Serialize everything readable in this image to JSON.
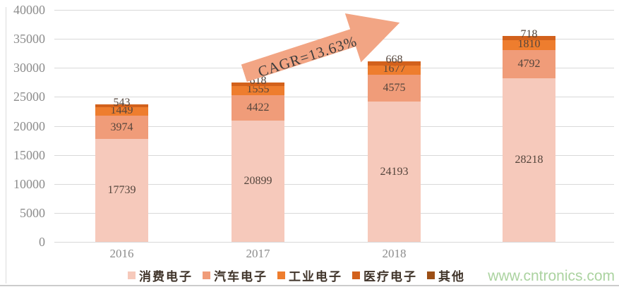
{
  "watermark": "www.cntronics.com",
  "annotation": {
    "text": "CAGR=13.63%"
  },
  "colors": {
    "grid": "#d9d9d9",
    "axis_text": "#8c8c8c",
    "bar_label_text": "#54453c",
    "legend_text": "#40342a",
    "arrow_fill": "#f2a584",
    "watermark_text": "#abd3a0"
  },
  "chart_data": {
    "type": "bar",
    "stacked": true,
    "title": "",
    "xlabel": "",
    "ylabel": "",
    "categories": [
      "2016",
      "2017",
      "2018",
      ""
    ],
    "series": [
      {
        "name": "消费电子",
        "key": "consumer-electronics",
        "color": "#f6c9bb",
        "values": [
          17739,
          20899,
          24193,
          28218
        ]
      },
      {
        "name": "汽车电子",
        "key": "automotive-electronics",
        "color": "#f09c79",
        "values": [
          3974,
          4422,
          4575,
          4792
        ]
      },
      {
        "name": "工业电子",
        "key": "industrial-electronics",
        "color": "#ee7d2e",
        "values": [
          1449,
          1555,
          1677,
          1810
        ]
      },
      {
        "name": "医疗电子",
        "key": "medical-electronics",
        "color": "#d2611c",
        "values": [
          543,
          618,
          668,
          718
        ]
      },
      {
        "name": "其他",
        "key": "others",
        "color": "#9c4f16",
        "values": []
      }
    ],
    "ylim": [
      0,
      40000
    ],
    "yticks": [
      0,
      5000,
      10000,
      15000,
      20000,
      25000,
      30000,
      35000,
      40000
    ],
    "grid": true,
    "legend_position": "bottom",
    "annotation": "CAGR=13.63%"
  }
}
